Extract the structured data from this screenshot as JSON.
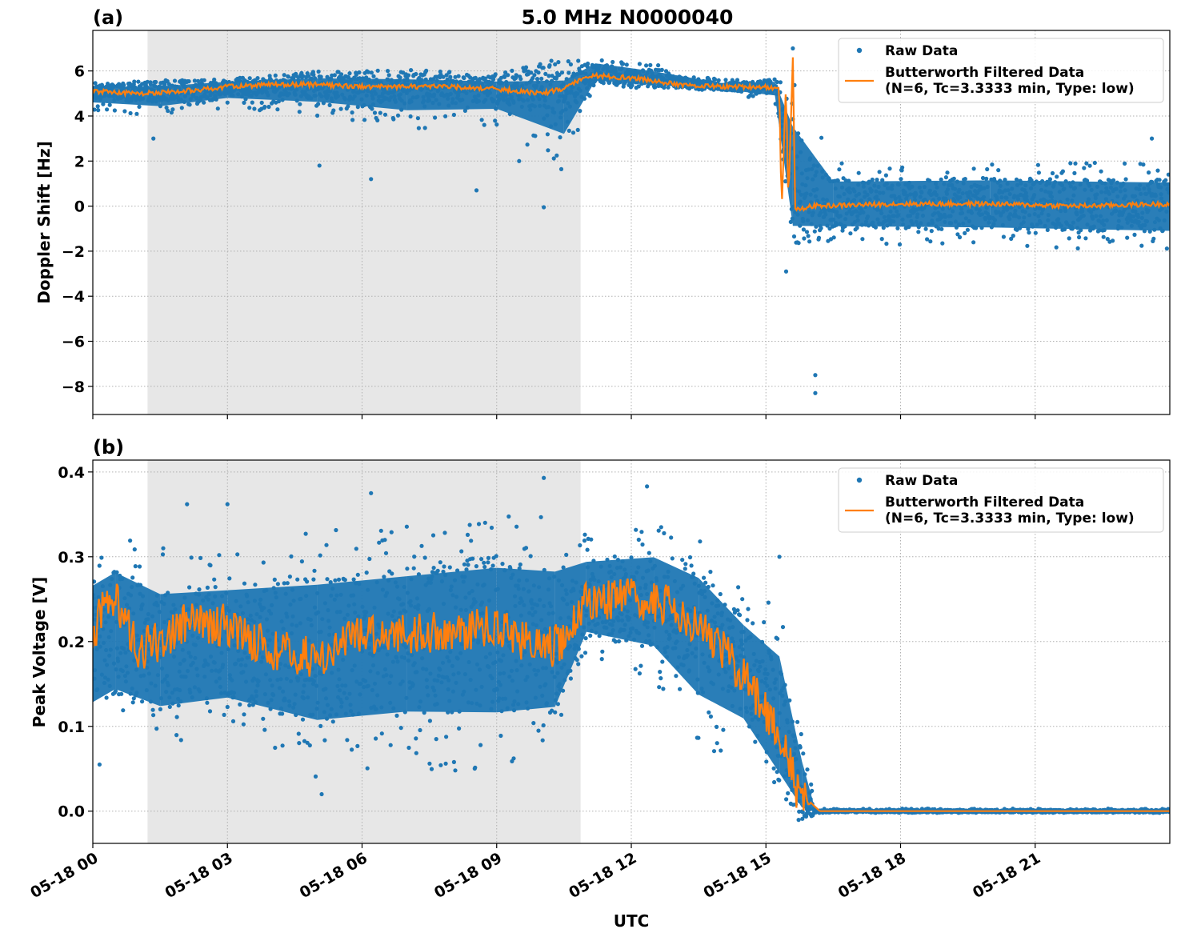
{
  "chart_data": [
    {
      "panel": "(a)",
      "type": "scatter",
      "title": "5.0 MHz N0000040",
      "xlabel": "",
      "ylabel": "Doppler Shift [Hz]",
      "x_ticks": [
        "05-18 00",
        "05-18 03",
        "05-18 06",
        "05-18 09",
        "05-18 12",
        "05-18 15",
        "05-18 18",
        "05-18 21"
      ],
      "y_ticks": [
        "6",
        "4",
        "2",
        "0",
        "−2",
        "−4",
        "−6",
        "−8"
      ],
      "ylim": [
        -9.25,
        7.8
      ],
      "xlim_hours": [
        0,
        24
      ],
      "grid": true,
      "shaded_interval_hours": [
        1.22,
        10.87
      ],
      "legend": {
        "placement": "top-right",
        "entries": [
          "Raw Data",
          "Butterworth Filtered Data\n(N=6, Tc=3.3333 min, Type: low)"
        ]
      },
      "series": [
        {
          "name": "Raw Data",
          "kind": "points",
          "color": "#1f77b4",
          "envelope": [
            {
              "x": 0.0,
              "y": 5.1,
              "lo": 4.2,
              "hi": 5.4
            },
            {
              "x": 1.5,
              "y": 5.1,
              "lo": 3.9,
              "hi": 5.5
            },
            {
              "x": 3.0,
              "y": 5.3,
              "lo": 4.4,
              "hi": 5.7
            },
            {
              "x": 5.0,
              "y": 5.4,
              "lo": 4.0,
              "hi": 5.9
            },
            {
              "x": 7.0,
              "y": 5.3,
              "lo": 3.4,
              "hi": 5.9
            },
            {
              "x": 9.0,
              "y": 5.2,
              "lo": 3.6,
              "hi": 5.8
            },
            {
              "x": 10.5,
              "y": 5.3,
              "lo": 1.5,
              "hi": 5.8
            },
            {
              "x": 11.2,
              "y": 5.9,
              "lo": 5.3,
              "hi": 6.7
            },
            {
              "x": 12.5,
              "y": 5.6,
              "lo": 5.2,
              "hi": 6.3
            },
            {
              "x": 14.0,
              "y": 5.3,
              "lo": 5.1,
              "hi": 5.6
            },
            {
              "x": 15.2,
              "y": 5.3,
              "lo": 4.6,
              "hi": 5.7
            },
            {
              "x": 15.6,
              "y": 0.5,
              "lo": -2.0,
              "hi": 6.0
            },
            {
              "x": 16.5,
              "y": 0.1,
              "lo": -1.7,
              "hi": 1.9
            },
            {
              "x": 20.0,
              "y": 0.1,
              "lo": -1.8,
              "hi": 2.0
            },
            {
              "x": 24.0,
              "y": 0.0,
              "lo": -2.0,
              "hi": 1.9
            }
          ],
          "outliers": [
            {
              "x": 1.35,
              "y": 3.0
            },
            {
              "x": 5.05,
              "y": 1.8
            },
            {
              "x": 6.2,
              "y": 1.2
            },
            {
              "x": 8.55,
              "y": 0.7
            },
            {
              "x": 9.5,
              "y": 2.0
            },
            {
              "x": 10.05,
              "y": -0.05
            },
            {
              "x": 15.45,
              "y": -2.9
            },
            {
              "x": 16.1,
              "y": -7.5
            },
            {
              "x": 16.1,
              "y": -8.3
            },
            {
              "x": 15.6,
              "y": 7.0
            },
            {
              "x": 23.6,
              "y": 3.0
            }
          ]
        },
        {
          "name": "Butterworth Filtered Data\n(N=6, Tc=3.3333 min, Type: low)",
          "kind": "line",
          "color": "#ff7f0e",
          "points": [
            {
              "x": 0.0,
              "y": 5.1
            },
            {
              "x": 1.0,
              "y": 5.0
            },
            {
              "x": 2.0,
              "y": 5.1
            },
            {
              "x": 3.0,
              "y": 5.3
            },
            {
              "x": 4.0,
              "y": 5.4
            },
            {
              "x": 5.0,
              "y": 5.4
            },
            {
              "x": 6.0,
              "y": 5.3
            },
            {
              "x": 7.0,
              "y": 5.3
            },
            {
              "x": 8.0,
              "y": 5.3
            },
            {
              "x": 9.0,
              "y": 5.2
            },
            {
              "x": 10.0,
              "y": 5.0
            },
            {
              "x": 10.5,
              "y": 5.2
            },
            {
              "x": 11.0,
              "y": 5.8
            },
            {
              "x": 12.0,
              "y": 5.7
            },
            {
              "x": 13.0,
              "y": 5.4
            },
            {
              "x": 14.0,
              "y": 5.3
            },
            {
              "x": 15.0,
              "y": 5.3
            },
            {
              "x": 15.3,
              "y": 5.2
            },
            {
              "x": 15.35,
              "y": -0.3
            },
            {
              "x": 15.45,
              "y": 5.5
            },
            {
              "x": 15.5,
              "y": 0.0
            },
            {
              "x": 15.6,
              "y": 6.7
            },
            {
              "x": 15.65,
              "y": -0.2
            },
            {
              "x": 16.0,
              "y": 0.0
            },
            {
              "x": 18.0,
              "y": 0.1
            },
            {
              "x": 20.0,
              "y": 0.1
            },
            {
              "x": 22.0,
              "y": 0.0
            },
            {
              "x": 24.0,
              "y": 0.1
            }
          ]
        }
      ]
    },
    {
      "panel": "(b)",
      "type": "scatter",
      "title": "",
      "xlabel": "UTC",
      "ylabel": "Peak Voltage [V]",
      "x_ticks": [
        "05-18 00",
        "05-18 03",
        "05-18 06",
        "05-18 09",
        "05-18 12",
        "05-18 15",
        "05-18 18",
        "05-18 21"
      ],
      "y_ticks": [
        "0.4",
        "0.3",
        "0.2",
        "0.1",
        "0.0"
      ],
      "ylim": [
        -0.038,
        0.414
      ],
      "xlim_hours": [
        0,
        24
      ],
      "grid": true,
      "shaded_interval_hours": [
        1.22,
        10.87
      ],
      "legend": {
        "placement": "top-right",
        "entries": [
          "Raw Data",
          "Butterworth Filtered Data\n(N=6, Tc=3.3333 min, Type: low)"
        ]
      },
      "series": [
        {
          "name": "Raw Data",
          "kind": "points",
          "color": "#1f77b4",
          "envelope": [
            {
              "x": 0.0,
              "y": 0.2,
              "lo": 0.07,
              "hi": 0.32
            },
            {
              "x": 0.5,
              "y": 0.21,
              "lo": 0.09,
              "hi": 0.34
            },
            {
              "x": 1.5,
              "y": 0.19,
              "lo": 0.07,
              "hi": 0.31
            },
            {
              "x": 3.0,
              "y": 0.2,
              "lo": 0.08,
              "hi": 0.31
            },
            {
              "x": 5.0,
              "y": 0.19,
              "lo": 0.04,
              "hi": 0.33
            },
            {
              "x": 7.0,
              "y": 0.2,
              "lo": 0.05,
              "hi": 0.34
            },
            {
              "x": 9.0,
              "y": 0.21,
              "lo": 0.04,
              "hi": 0.35
            },
            {
              "x": 10.3,
              "y": 0.2,
              "lo": 0.06,
              "hi": 0.35
            },
            {
              "x": 11.0,
              "y": 0.25,
              "lo": 0.18,
              "hi": 0.33
            },
            {
              "x": 12.5,
              "y": 0.25,
              "lo": 0.15,
              "hi": 0.34
            },
            {
              "x": 13.5,
              "y": 0.22,
              "lo": 0.07,
              "hi": 0.32
            },
            {
              "x": 14.5,
              "y": 0.17,
              "lo": 0.06,
              "hi": 0.26
            },
            {
              "x": 15.3,
              "y": 0.1,
              "lo": 0.0,
              "hi": 0.25
            },
            {
              "x": 15.8,
              "y": 0.01,
              "lo": 0.0,
              "hi": 0.1
            },
            {
              "x": 16.1,
              "y": 0.0,
              "lo": -0.002,
              "hi": 0.003
            },
            {
              "x": 24.0,
              "y": 0.0,
              "lo": -0.002,
              "hi": 0.003
            }
          ],
          "outliers": [
            {
              "x": 2.1,
              "y": 0.362
            },
            {
              "x": 3.0,
              "y": 0.362
            },
            {
              "x": 6.2,
              "y": 0.375
            },
            {
              "x": 10.05,
              "y": 0.393
            },
            {
              "x": 12.35,
              "y": 0.383
            },
            {
              "x": 15.3,
              "y": 0.3
            },
            {
              "x": 0.15,
              "y": 0.055
            },
            {
              "x": 5.1,
              "y": 0.02
            }
          ]
        },
        {
          "name": "Butterworth Filtered Data\n(N=6, Tc=3.3333 min, Type: low)",
          "kind": "line",
          "color": "#ff7f0e",
          "points": [
            {
              "x": 0.0,
              "y": 0.21
            },
            {
              "x": 0.4,
              "y": 0.26
            },
            {
              "x": 1.0,
              "y": 0.19
            },
            {
              "x": 1.5,
              "y": 0.2
            },
            {
              "x": 2.0,
              "y": 0.22
            },
            {
              "x": 3.0,
              "y": 0.22
            },
            {
              "x": 4.0,
              "y": 0.19
            },
            {
              "x": 5.0,
              "y": 0.18
            },
            {
              "x": 6.0,
              "y": 0.21
            },
            {
              "x": 7.0,
              "y": 0.21
            },
            {
              "x": 8.0,
              "y": 0.21
            },
            {
              "x": 9.0,
              "y": 0.22
            },
            {
              "x": 10.0,
              "y": 0.19
            },
            {
              "x": 10.5,
              "y": 0.2
            },
            {
              "x": 11.0,
              "y": 0.25
            },
            {
              "x": 12.0,
              "y": 0.25
            },
            {
              "x": 13.0,
              "y": 0.24
            },
            {
              "x": 13.7,
              "y": 0.21
            },
            {
              "x": 14.5,
              "y": 0.16
            },
            {
              "x": 15.0,
              "y": 0.12
            },
            {
              "x": 15.4,
              "y": 0.08
            },
            {
              "x": 15.7,
              "y": 0.02
            },
            {
              "x": 16.0,
              "y": 0.01
            },
            {
              "x": 16.2,
              "y": 0.0
            },
            {
              "x": 24.0,
              "y": 0.0
            }
          ]
        }
      ]
    }
  ]
}
